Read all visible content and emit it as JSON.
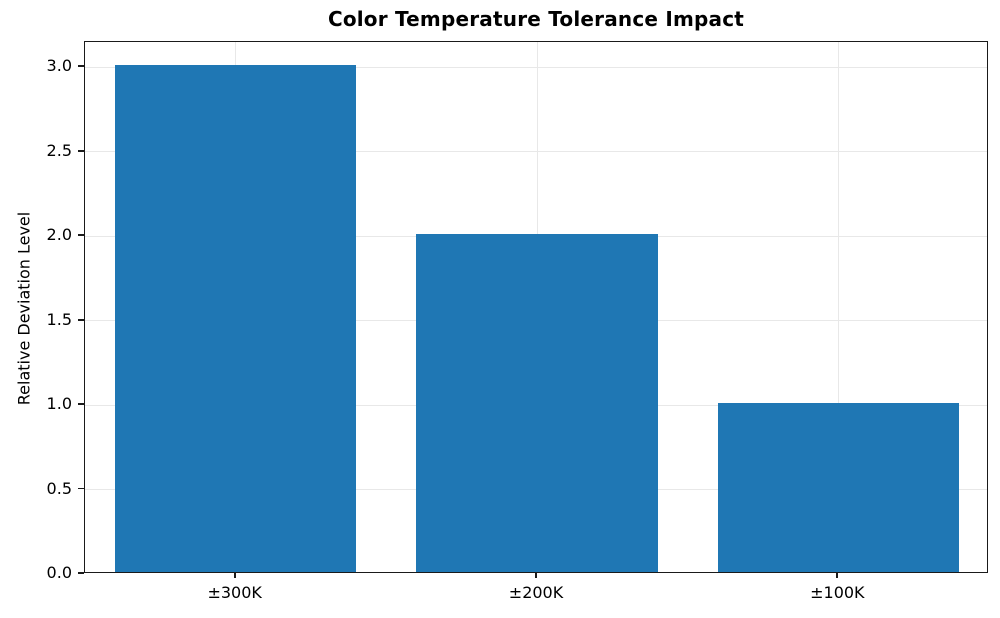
{
  "chart_data": {
    "type": "bar",
    "title": "Color Temperature Tolerance Impact",
    "categories": [
      "±300K",
      "±200K",
      "±100K"
    ],
    "values": [
      3,
      2,
      1
    ],
    "xlabel": "",
    "ylabel": "Relative Deviation Level",
    "ylim": [
      0,
      3.15
    ],
    "yticks": [
      0.0,
      0.5,
      1.0,
      1.5,
      2.0,
      2.5,
      3.0
    ],
    "ytick_labels": [
      "0.0",
      "0.5",
      "1.0",
      "1.5",
      "2.0",
      "2.5",
      "3.0"
    ],
    "bar_width_fraction": 0.8,
    "bar_color": "#1f77b4",
    "grid": true,
    "grid_color": "#e8e8e8",
    "spine_color": "#1a1a1a",
    "legend": null
  }
}
